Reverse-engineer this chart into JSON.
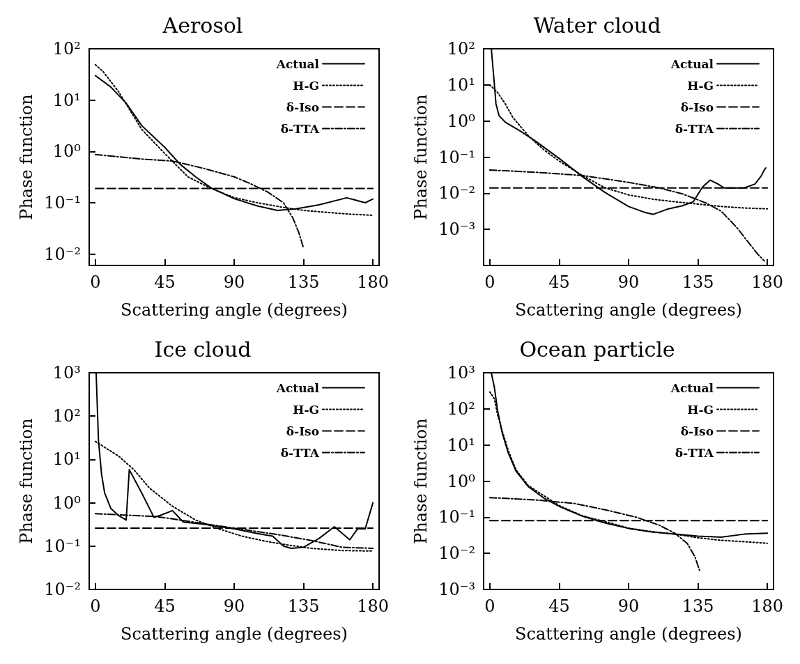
{
  "chart_data": [
    {
      "type": "line",
      "title": "Aerosol",
      "xlabel": "Scattering angle (degrees)",
      "ylabel": "Phase function",
      "log": "y",
      "grid": false,
      "legend": "top right",
      "marker": "none",
      "xlim": [
        -4,
        184
      ],
      "xticks": [
        0,
        45,
        90,
        135,
        180
      ],
      "ylim": [
        0.006,
        100
      ],
      "yticks": [
        {
          "value": 0.01,
          "label": "10⁻²"
        },
        {
          "value": 0.1,
          "label": "10⁻¹"
        },
        {
          "value": 1,
          "label": "10⁰"
        },
        {
          "value": 10,
          "label": "10¹"
        },
        {
          "value": 100,
          "label": "10²"
        }
      ],
      "series": [
        {
          "name": "Actual",
          "color": "#000000",
          "line_style": "solid",
          "x": [
            0,
            10,
            20,
            30,
            45,
            55,
            65,
            75,
            90,
            105,
            118,
            130,
            145,
            163,
            170,
            175,
            180
          ],
          "values": [
            30,
            18,
            8.7,
            3.2,
            1.2,
            0.56,
            0.32,
            0.195,
            0.12,
            0.087,
            0.071,
            0.076,
            0.091,
            0.125,
            0.11,
            0.1,
            0.118
          ]
        },
        {
          "name": "H-G",
          "color": "#000000",
          "line_style": "dotted",
          "x": [
            0,
            5,
            15,
            30,
            45,
            60,
            75,
            90,
            105,
            120,
            135,
            150,
            165,
            180
          ],
          "values": [
            49,
            36,
            14.7,
            2.7,
            0.91,
            0.32,
            0.19,
            0.126,
            0.1,
            0.083,
            0.071,
            0.065,
            0.06,
            0.057
          ]
        },
        {
          "name": "δ-Iso",
          "color": "#000000",
          "line_style": "dashed",
          "x": [
            0,
            180
          ],
          "values": [
            0.19,
            0.19
          ]
        },
        {
          "name": "δ-TTA",
          "color": "#000000",
          "line_style": "dashdot",
          "x": [
            0,
            30,
            50,
            70,
            90,
            100,
            112,
            122,
            128,
            132,
            135
          ],
          "values": [
            0.87,
            0.71,
            0.65,
            0.47,
            0.32,
            0.24,
            0.16,
            0.1,
            0.051,
            0.026,
            0.013
          ]
        }
      ]
    },
    {
      "type": "line",
      "title": "Water cloud",
      "xlabel": "Scattering angle (degrees)",
      "ylabel": "Phase function",
      "log": "y",
      "grid": false,
      "legend": "top right",
      "marker": "none",
      "xlim": [
        -4,
        184
      ],
      "xticks": [
        0,
        45,
        90,
        135,
        180
      ],
      "ylim": [
        0.0001,
        100
      ],
      "yticks": [
        {
          "value": 0.001,
          "label": "10⁻³"
        },
        {
          "value": 0.01,
          "label": "10⁻²"
        },
        {
          "value": 0.1,
          "label": "10⁻¹"
        },
        {
          "value": 1,
          "label": "10⁰"
        },
        {
          "value": 10,
          "label": "10¹"
        },
        {
          "value": 100,
          "label": "10²"
        }
      ],
      "series": [
        {
          "name": "Actual",
          "color": "#000000",
          "line_style": "solid",
          "x": [
            1,
            3,
            4,
            6,
            10,
            20,
            30,
            45,
            60,
            75,
            90,
            100,
            106,
            115,
            125,
            132,
            138,
            143,
            148,
            152,
            165,
            172,
            176,
            178,
            179
          ],
          "values": [
            100,
            10,
            3,
            1.4,
            0.93,
            0.52,
            0.27,
            0.092,
            0.029,
            0.0103,
            0.0043,
            0.003,
            0.0026,
            0.0036,
            0.0045,
            0.0058,
            0.015,
            0.023,
            0.018,
            0.014,
            0.014,
            0.018,
            0.03,
            0.044,
            0.05
          ]
        },
        {
          "name": "H-G",
          "color": "#000000",
          "line_style": "dotted",
          "x": [
            0,
            5,
            10,
            15,
            25,
            35,
            45,
            60,
            75,
            90,
            105,
            120,
            135,
            150,
            165,
            180
          ],
          "values": [
            10,
            6.2,
            3,
            1.25,
            0.39,
            0.16,
            0.078,
            0.031,
            0.014,
            0.009,
            0.0069,
            0.0058,
            0.005,
            0.0043,
            0.0039,
            0.0037
          ]
        },
        {
          "name": "δ-Iso",
          "color": "#000000",
          "line_style": "dashed",
          "x": [
            0,
            180
          ],
          "values": [
            0.014,
            0.014
          ]
        },
        {
          "name": "δ-TTA",
          "color": "#000000",
          "line_style": "dashdot",
          "x": [
            0,
            30,
            60,
            90,
            110,
            125,
            140,
            150,
            160,
            168,
            174,
            178
          ],
          "values": [
            0.044,
            0.038,
            0.031,
            0.02,
            0.014,
            0.0096,
            0.0054,
            0.0032,
            0.00115,
            0.00042,
            0.0002,
            0.000134
          ]
        }
      ]
    },
    {
      "type": "line",
      "title": "Ice cloud",
      "xlabel": "Scattering angle (degrees)",
      "ylabel": "Phase function",
      "log": "y",
      "grid": false,
      "legend": "top right",
      "marker": "none",
      "xlim": [
        -4,
        184
      ],
      "xticks": [
        0,
        45,
        90,
        135,
        180
      ],
      "ylim": [
        0.01,
        1000
      ],
      "yticks": [
        {
          "value": 0.01,
          "label": "10⁻²"
        },
        {
          "value": 0.1,
          "label": "10⁻¹"
        },
        {
          "value": 1,
          "label": "10⁰"
        },
        {
          "value": 10,
          "label": "10¹"
        },
        {
          "value": 100,
          "label": "10²"
        },
        {
          "value": 1000,
          "label": "10³"
        }
      ],
      "series": [
        {
          "name": "Actual",
          "color": "#000000",
          "line_style": "solid",
          "x": [
            0.5,
            2,
            4,
            6,
            10,
            15,
            20,
            22,
            30,
            38,
            42,
            50,
            57,
            70,
            90,
            105,
            115,
            122,
            127,
            135,
            145,
            155,
            165,
            170,
            175,
            180
          ],
          "values": [
            1000,
            28,
            4.6,
            1.7,
            0.74,
            0.51,
            0.4,
            5.8,
            1.7,
            0.46,
            0.51,
            0.66,
            0.36,
            0.32,
            0.25,
            0.195,
            0.17,
            0.1,
            0.089,
            0.094,
            0.15,
            0.28,
            0.14,
            0.25,
            0.25,
            1
          ]
        },
        {
          "name": "H-G",
          "color": "#000000",
          "line_style": "dotted",
          "x": [
            0,
            15,
            25,
            35,
            50,
            65,
            80,
            95,
            110,
            125,
            140,
            160,
            180
          ],
          "values": [
            26,
            12,
            5.8,
            2.2,
            0.83,
            0.4,
            0.25,
            0.17,
            0.13,
            0.106,
            0.089,
            0.079,
            0.077
          ]
        },
        {
          "name": "δ-Iso",
          "color": "#000000",
          "line_style": "dashed",
          "x": [
            0,
            180
          ],
          "values": [
            0.26,
            0.26
          ]
        },
        {
          "name": "δ-TTA",
          "color": "#000000",
          "line_style": "dashdot",
          "x": [
            0,
            40,
            70,
            100,
            120,
            140,
            160,
            180
          ],
          "values": [
            0.56,
            0.48,
            0.33,
            0.23,
            0.18,
            0.135,
            0.094,
            0.089
          ]
        }
      ]
    },
    {
      "type": "line",
      "title": "Ocean particle",
      "xlabel": "Scattering angle (degrees)",
      "ylabel": "Phase function",
      "log": "y",
      "grid": false,
      "legend": "top right",
      "marker": "none",
      "xlim": [
        -4,
        184
      ],
      "xticks": [
        0,
        45,
        90,
        135,
        180
      ],
      "ylim": [
        0.001,
        1000
      ],
      "yticks": [
        {
          "value": 0.001,
          "label": "10⁻³"
        },
        {
          "value": 0.01,
          "label": "10⁻²"
        },
        {
          "value": 0.1,
          "label": "10⁻¹"
        },
        {
          "value": 1,
          "label": "10⁰"
        },
        {
          "value": 10,
          "label": "10¹"
        },
        {
          "value": 100,
          "label": "10²"
        },
        {
          "value": 1000,
          "label": "10³"
        }
      ],
      "series": [
        {
          "name": "Actual",
          "color": "#000000",
          "line_style": "solid",
          "x": [
            1,
            3,
            5,
            8,
            12,
            17,
            25,
            35,
            45,
            60,
            75,
            90,
            105,
            120,
            135,
            150,
            165,
            180
          ],
          "values": [
            1000,
            390,
            93,
            22,
            6,
            1.9,
            0.7,
            0.34,
            0.2,
            0.107,
            0.069,
            0.049,
            0.039,
            0.034,
            0.03,
            0.028,
            0.034,
            0.036
          ]
        },
        {
          "name": "H-G",
          "color": "#000000",
          "line_style": "dotted",
          "x": [
            0,
            3,
            5,
            8,
            12,
            17,
            25,
            45,
            60,
            75,
            90,
            105,
            120,
            135,
            150,
            165,
            180
          ],
          "values": [
            295,
            190,
            70,
            25,
            7,
            2.05,
            0.75,
            0.21,
            0.11,
            0.075,
            0.05,
            0.04,
            0.034,
            0.027,
            0.023,
            0.021,
            0.019
          ]
        },
        {
          "name": "δ-Iso",
          "color": "#000000",
          "line_style": "dashed",
          "x": [
            0,
            180
          ],
          "values": [
            0.08,
            0.08
          ]
        },
        {
          "name": "δ-TTA",
          "color": "#000000",
          "line_style": "dashdot",
          "x": [
            0,
            30,
            55,
            75,
            95,
            110,
            120,
            128,
            133,
            136
          ],
          "values": [
            0.35,
            0.3,
            0.24,
            0.16,
            0.1,
            0.06,
            0.036,
            0.019,
            0.0081,
            0.0034
          ]
        }
      ]
    }
  ]
}
